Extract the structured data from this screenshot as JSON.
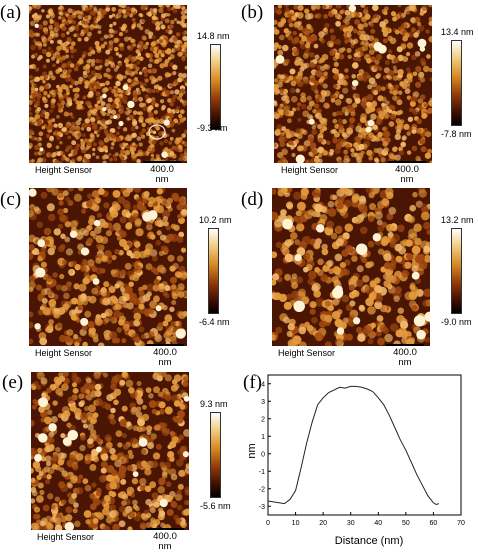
{
  "panels": {
    "a": {
      "label": "(a)",
      "sensor": "Height Sensor",
      "scale": "400.0 nm",
      "max": "14.8 nm",
      "min": "-9.3 nm"
    },
    "b": {
      "label": "(b)",
      "sensor": "Height Sensor",
      "scale": "400.0 nm",
      "max": "13.4 nm",
      "min": "-7.8 nm"
    },
    "c": {
      "label": "(c)",
      "sensor": "Height Sensor",
      "scale": "400.0 nm",
      "max": "10.2 nm",
      "min": "-6.4 nm"
    },
    "d": {
      "label": "(d)",
      "sensor": "Height Sensor",
      "scale": "400.0 nm",
      "max": "13.2 nm",
      "min": "-9.0 nm"
    },
    "e": {
      "label": "(e)",
      "sensor": "Height Sensor",
      "scale": "400.0 nm",
      "max": "9.3 nm",
      "min": "-5.6 nm"
    },
    "f": {
      "label": "(f)"
    }
  },
  "colors": {
    "afm_dark": "#4a1603",
    "afm_mid": "#a24a10",
    "afm_light": "#e49a3c",
    "afm_peak": "#fff3d6",
    "line": "#222222"
  },
  "chart_data": {
    "type": "line",
    "xlabel": "Distance (nm)",
    "ylabel": "nm",
    "xlim": [
      0,
      70
    ],
    "ylim": [
      -3.5,
      4.5
    ],
    "xticks": [
      0,
      10,
      20,
      30,
      40,
      50,
      60,
      70
    ],
    "yticks": [
      -3,
      -2,
      -1,
      0,
      1,
      2,
      3,
      4
    ],
    "series": [
      {
        "x": [
          0,
          2,
          4,
          6,
          8,
          10,
          12,
          14,
          16,
          18,
          20,
          22,
          24,
          26,
          28,
          30,
          32,
          34,
          36,
          38,
          40,
          42,
          44,
          46,
          48,
          50,
          52,
          54,
          56,
          58,
          60,
          61,
          62
        ],
        "y": [
          -2.7,
          -2.75,
          -2.8,
          -2.85,
          -2.6,
          -2.1,
          -0.8,
          0.6,
          1.8,
          2.8,
          3.2,
          3.5,
          3.65,
          3.8,
          3.75,
          3.85,
          3.85,
          3.8,
          3.7,
          3.55,
          3.2,
          2.8,
          2.2,
          1.5,
          0.8,
          0.2,
          -0.5,
          -1.2,
          -1.8,
          -2.4,
          -2.8,
          -2.9,
          -2.85
        ]
      }
    ]
  }
}
